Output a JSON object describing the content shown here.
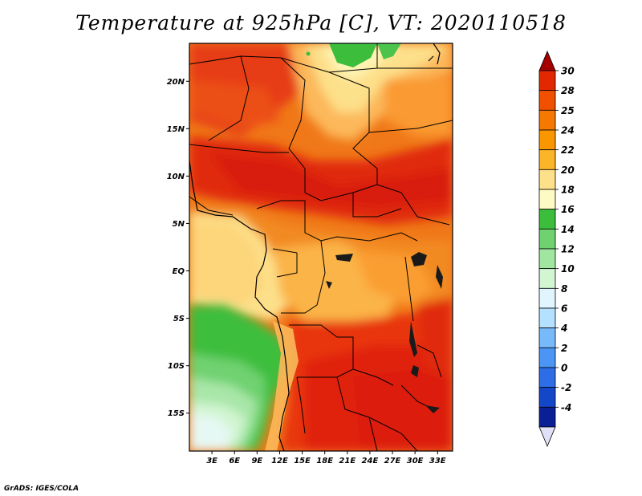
{
  "title": "Temperature at 925hPa [C], VT: 2020110518",
  "credit": "GrADS: IGES/COLA",
  "map": {
    "lon_range": [
      0,
      35
    ],
    "lat_range": [
      -19,
      24
    ],
    "lat_ticks": [
      "20N",
      "15N",
      "10N",
      "5N",
      "EQ",
      "5S",
      "10S",
      "15S"
    ],
    "lat_tick_values": [
      20,
      15,
      10,
      5,
      0,
      -5,
      -10,
      -15
    ],
    "lon_ticks": [
      "3E",
      "6E",
      "9E",
      "12E",
      "15E",
      "18E",
      "21E",
      "24E",
      "27E",
      "30E",
      "33E"
    ],
    "lon_tick_values": [
      3,
      6,
      9,
      12,
      15,
      18,
      21,
      24,
      27,
      30,
      33
    ]
  },
  "colorbar": {
    "labels": [
      "30",
      "28",
      "25",
      "24",
      "22",
      "20",
      "18",
      "16",
      "14",
      "12",
      "10",
      "8",
      "6",
      "4",
      "2",
      "0",
      "-2",
      "-4"
    ],
    "colors": [
      "#a50000",
      "#e12800",
      "#f05000",
      "#f57800",
      "#fa9600",
      "#fcb428",
      "#fde08a",
      "#fdfbc3",
      "#3cbe3c",
      "#6fd26f",
      "#a0e6a0",
      "#d2f5d2",
      "#e1f5ff",
      "#b4e1ff",
      "#78b9fa",
      "#4b96f5",
      "#2d6ee6",
      "#1446c8",
      "#0a1e96",
      "#e0e0f8"
    ]
  }
}
